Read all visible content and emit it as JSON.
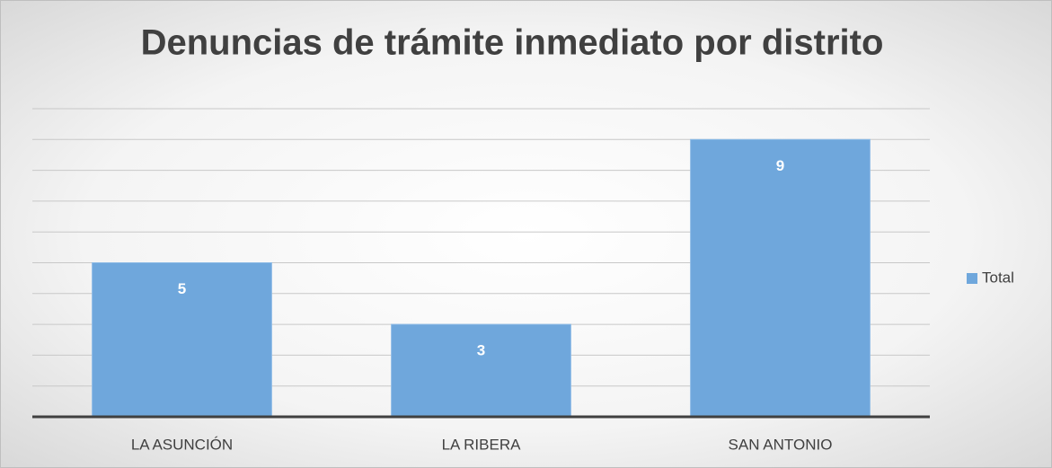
{
  "chart_data": {
    "type": "bar",
    "title": "Denuncias de trámite inmediato por distrito",
    "categories": [
      "LA ASUNCIÓN",
      "LA RIBERA",
      "SAN ANTONIO"
    ],
    "series": [
      {
        "name": "Total",
        "color": "#6fa7dc",
        "values": [
          5,
          3,
          9
        ]
      }
    ],
    "ylim": [
      0,
      10
    ],
    "yticks": [
      0,
      1,
      2,
      3,
      4,
      5,
      6,
      7,
      8,
      9,
      10
    ],
    "grid": true,
    "legend": "right"
  }
}
